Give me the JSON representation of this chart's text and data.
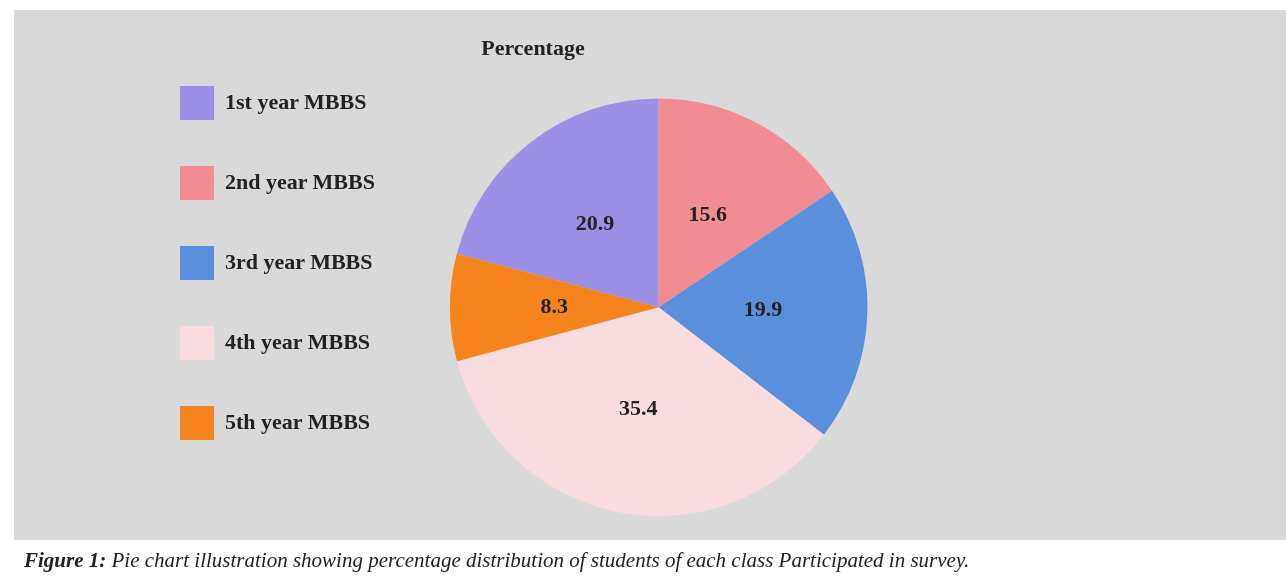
{
  "chart_data": {
    "type": "pie",
    "title": "Percentage",
    "categories": [
      "1st year MBBS",
      "2nd year MBBS",
      "3rd year MBBS",
      "4th year MBBS",
      "5th year MBBS"
    ],
    "values": [
      20.9,
      15.6,
      19.9,
      35.4,
      8.3
    ],
    "colors": [
      "#9b8fe6",
      "#f28c93",
      "#5a8fdb",
      "#f8dcdf",
      "#f5841f"
    ],
    "data_labels": true,
    "legend": "left",
    "annotations": [
      "Figure 1: Pie chart illustration showing percentage distribution of students of each class Participated in survey."
    ]
  }
}
